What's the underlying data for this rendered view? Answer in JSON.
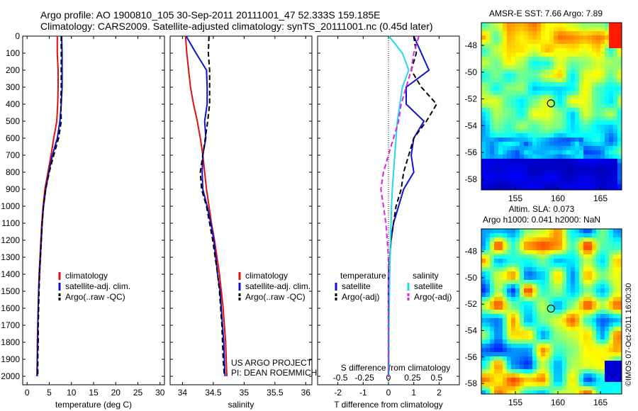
{
  "header": {
    "line1": "Argo profile: AO 1900810_105 30-Sep-2011 20111001_47 52.333S 159.185E",
    "line2": "Climatology: CARS2009. Satellite-adjusted climatology: synTS_20111001.nc (0.45d later)"
  },
  "colors": {
    "climatology": "#e01010",
    "satellite": "#1010d0",
    "argo": "#000000",
    "satellite_salinity": "#20d8e8",
    "argo_salinity_diff": "#e020e0"
  },
  "chart_data": [
    {
      "type": "line",
      "xlabel": "temperature (deg C)",
      "xlim": [
        -1,
        31
      ],
      "ylim": [
        0,
        2050
      ],
      "xticks": [
        "0",
        "5",
        "10",
        "15",
        "20",
        "25",
        "30"
      ],
      "xtick_values": [
        0,
        5,
        10,
        15,
        20,
        25,
        30
      ],
      "yticks": [
        "0",
        "100",
        "200",
        "300",
        "400",
        "500",
        "600",
        "700",
        "800",
        "900",
        "1000",
        "1100",
        "1200",
        "1300",
        "1400",
        "1500",
        "1600",
        "1700",
        "1800",
        "1900",
        "2000"
      ],
      "legend": [
        "climatology",
        "satellite-adj. clim.",
        "Argo(..raw -QC)"
      ],
      "series": [
        {
          "name": "climatology",
          "style": "solid",
          "color": "#e01010",
          "x": [
            6.8,
            6.8,
            7.0,
            7.0,
            6.9,
            6.7,
            6.0,
            5.4,
            4.7,
            4.0,
            3.6,
            3.3,
            3.1,
            2.9,
            2.7,
            2.6,
            2.5,
            2.4,
            2.3,
            2.3,
            2.2
          ],
          "y": [
            0,
            100,
            200,
            300,
            400,
            500,
            600,
            700,
            800,
            900,
            1000,
            1100,
            1200,
            1300,
            1400,
            1500,
            1600,
            1700,
            1800,
            1900,
            2000
          ]
        },
        {
          "name": "satellite-adj. clim.",
          "style": "solid",
          "color": "#1010d0",
          "x": [
            7.8,
            7.9,
            7.9,
            7.9,
            7.7,
            7.4,
            6.8,
            5.7,
            4.9,
            4.2,
            3.7,
            3.4,
            3.2,
            3.0,
            2.8,
            2.6,
            2.5,
            2.4,
            2.4,
            2.3,
            2.3
          ],
          "y": [
            0,
            100,
            200,
            300,
            400,
            500,
            600,
            700,
            800,
            900,
            1000,
            1100,
            1200,
            1300,
            1400,
            1500,
            1600,
            1700,
            1800,
            1900,
            2000
          ]
        },
        {
          "name": "Argo(..raw -QC)",
          "style": "dashed",
          "color": "#000000",
          "x": [
            7.7,
            7.7,
            7.7,
            7.7,
            7.6,
            7.7,
            7.1,
            6.0,
            5.0,
            4.2,
            3.7,
            3.4,
            3.2,
            3.0,
            2.8,
            2.7,
            2.6,
            2.5,
            2.5,
            2.4,
            2.4
          ],
          "y": [
            0,
            100,
            200,
            300,
            400,
            500,
            600,
            700,
            800,
            900,
            1000,
            1100,
            1200,
            1300,
            1400,
            1500,
            1600,
            1700,
            1800,
            1900,
            2000
          ]
        }
      ]
    },
    {
      "type": "line",
      "xlabel": "salinity",
      "xlim": [
        33.8,
        36.1
      ],
      "ylim": [
        0,
        2050
      ],
      "xticks": [
        "34",
        "34.5",
        "35",
        "35.5",
        "36"
      ],
      "xtick_values": [
        34,
        34.5,
        35,
        35.5,
        36
      ],
      "legend": [
        "climatology",
        "satellite-adj. clim.",
        "Argo(..raw -QC)"
      ],
      "annotation": [
        "US ARGO PROJECT",
        "PI: DEAN ROEMMICH"
      ],
      "series": [
        {
          "name": "climatology",
          "style": "solid",
          "color": "#e01010",
          "x": [
            34.05,
            34.07,
            34.1,
            34.13,
            34.18,
            34.24,
            34.29,
            34.33,
            34.36,
            34.39,
            34.43,
            34.47,
            34.52,
            34.56,
            34.6,
            34.63,
            34.66,
            34.68,
            34.7,
            34.71,
            34.72
          ],
          "y": [
            0,
            100,
            200,
            300,
            400,
            500,
            600,
            700,
            800,
            900,
            1000,
            1100,
            1200,
            1300,
            1400,
            1500,
            1600,
            1700,
            1800,
            1900,
            2000
          ]
        },
        {
          "name": "satellite-adj. clim.",
          "style": "solid",
          "color": "#1010d0",
          "x": [
            34.06,
            34.22,
            34.39,
            34.4,
            34.4,
            34.36,
            34.38,
            34.33,
            34.32,
            34.33,
            34.4,
            34.46,
            34.51,
            34.54,
            34.57,
            34.61,
            34.63,
            34.65,
            34.67,
            34.68,
            34.69
          ],
          "y": [
            0,
            100,
            200,
            300,
            400,
            500,
            600,
            700,
            800,
            900,
            1000,
            1100,
            1200,
            1300,
            1400,
            1500,
            1600,
            1700,
            1800,
            1900,
            2000
          ]
        },
        {
          "name": "Argo(..raw -QC)",
          "style": "dashed",
          "color": "#000000",
          "x": [
            34.43,
            34.42,
            34.44,
            34.44,
            34.44,
            34.41,
            34.37,
            34.33,
            34.29,
            34.31,
            34.39,
            34.44,
            34.49,
            34.53,
            34.57,
            34.6,
            34.62,
            34.64,
            34.65,
            34.66,
            34.68
          ],
          "y": [
            0,
            100,
            200,
            300,
            400,
            500,
            600,
            700,
            800,
            900,
            1000,
            1100,
            1200,
            1300,
            1400,
            1500,
            1600,
            1700,
            1800,
            1900,
            2000
          ]
        }
      ]
    },
    {
      "type": "line",
      "xlabel": "T difference from climatology",
      "x2label": "S difference from climatology",
      "xlim": [
        -2.8,
        2.8
      ],
      "ylim": [
        0,
        2050
      ],
      "xticks": [
        "-2",
        "-1",
        "0",
        "1",
        "2"
      ],
      "xtick_values": [
        -2,
        -1,
        0,
        1,
        2
      ],
      "x2ticks": [
        "-0.5",
        "-0.25",
        "0",
        "0.25",
        "0.5"
      ],
      "legend_titles": [
        "temperature",
        "salinity"
      ],
      "legend": [
        "satellite",
        "Argo(-adj)",
        "satellite",
        "Argo(-adj)"
      ],
      "series": [
        {
          "name": "temperature satellite",
          "style": "solid",
          "color": "#1010d0",
          "x": [
            1.0,
            1.3,
            1.6,
            0.7,
            0.7,
            1.4,
            1.0,
            0.9,
            1.0,
            0.6,
            0.4,
            0.2,
            0.1,
            0.05,
            0.0,
            0.0,
            0.0,
            0.0,
            0.0,
            0.0,
            0.0
          ],
          "y": [
            0,
            100,
            200,
            300,
            400,
            500,
            600,
            700,
            800,
            900,
            1000,
            1100,
            1200,
            1300,
            1400,
            1500,
            1600,
            1700,
            1800,
            1900,
            2000
          ]
        },
        {
          "name": "temperature Argo(-adj)",
          "style": "dashed",
          "color": "#000000",
          "x": [
            1.0,
            1.1,
            0.9,
            1.3,
            1.9,
            1.5,
            1.0,
            0.8,
            0.6,
            0.5,
            0.3,
            0.2,
            0.1,
            0.05,
            0.02,
            0.0,
            0.0,
            0.0,
            0.0,
            0.0,
            0.0
          ],
          "y": [
            0,
            100,
            200,
            300,
            400,
            500,
            600,
            700,
            800,
            900,
            1000,
            1100,
            1200,
            1300,
            1400,
            1500,
            1600,
            1700,
            1800,
            1900,
            2000
          ]
        },
        {
          "name": "salinity satellite",
          "style": "solid",
          "color": "#20d8e8",
          "x": [
            0.02,
            0.55,
            0.8,
            0.55,
            0.45,
            0.35,
            0.3,
            0.25,
            0.2,
            0.15,
            0.12,
            0.1,
            0.08,
            0.06,
            0.05,
            0.04,
            0.03,
            0.02,
            0.02,
            0.02,
            0.02
          ],
          "y": [
            0,
            100,
            200,
            300,
            400,
            500,
            600,
            700,
            800,
            900,
            1000,
            1100,
            1200,
            1300,
            1400,
            1500,
            1600,
            1700,
            1800,
            1900,
            2000
          ]
        },
        {
          "name": "salinity Argo(-adj)",
          "style": "dashed",
          "color": "#e020e0",
          "x": [
            1.2,
            1.0,
            0.9,
            0.7,
            0.5,
            0.4,
            0.2,
            0.0,
            -0.2,
            -0.3,
            -0.2,
            -0.1,
            -0.05,
            0.0,
            0.0,
            0.0,
            0.0,
            0.0,
            0.0,
            0.0,
            0.0
          ],
          "y": [
            0,
            100,
            200,
            300,
            400,
            500,
            600,
            700,
            800,
            900,
            1000,
            1100,
            1200,
            1300,
            1400,
            1500,
            1600,
            1700,
            1800,
            1900,
            2000
          ]
        }
      ]
    },
    {
      "type": "heatmap",
      "title": "AMSR-E SST: 7.66 Argo: 7.89",
      "xticks": [
        "155",
        "160",
        "165"
      ],
      "xtick_values": [
        155,
        160,
        165
      ],
      "yticks": [
        "-48",
        "-50",
        "-52",
        "-54",
        "-56",
        "-58"
      ],
      "ytick_values": [
        -48,
        -50,
        -52,
        -54,
        -56,
        -58
      ],
      "xlim": [
        151,
        167.5
      ],
      "ylim": [
        -58.8,
        -46.3
      ],
      "marker": {
        "lon": 159.185,
        "lat": -52.333
      }
    },
    {
      "type": "heatmap",
      "title": [
        "Altim. SLA: 0.073",
        "Argo h1000: 0.041 h2000: NaN"
      ],
      "xticks": [
        "155",
        "160",
        "165"
      ],
      "xtick_values": [
        155,
        160,
        165
      ],
      "yticks": [
        "-48",
        "-50",
        "-52",
        "-54",
        "-56",
        "-58"
      ],
      "ytick_values": [
        -48,
        -50,
        -52,
        -54,
        -56,
        -58
      ],
      "xlim": [
        151,
        167.5
      ],
      "ylim": [
        -58.8,
        -46.3
      ],
      "marker": {
        "lon": 159.185,
        "lat": -52.333
      }
    }
  ],
  "footer": {
    "watermark": "©IMOS 07-Oct-2011 16:00:30"
  }
}
